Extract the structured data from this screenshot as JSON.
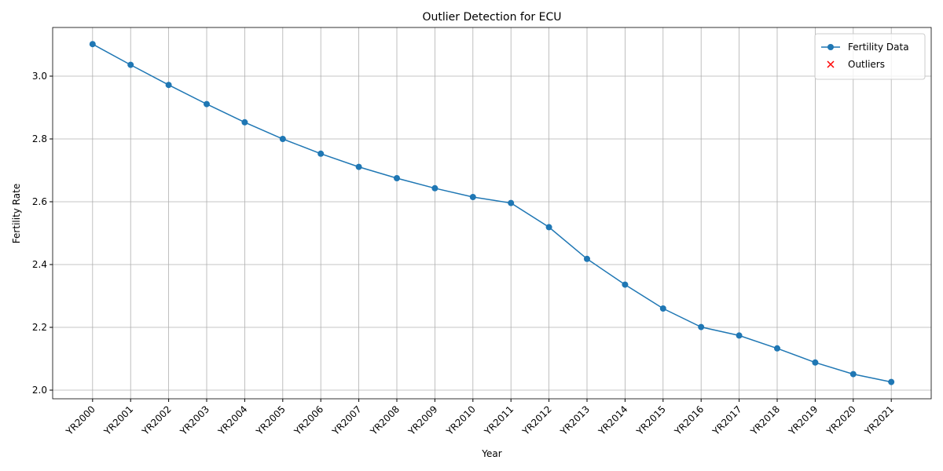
{
  "chart_data": {
    "type": "line",
    "title": "Outlier Detection for ECU",
    "xlabel": "Year",
    "ylabel": "Fertility Rate",
    "categories": [
      "YR2000",
      "YR2001",
      "YR2002",
      "YR2003",
      "YR2004",
      "YR2005",
      "YR2006",
      "YR2007",
      "YR2008",
      "YR2009",
      "YR2010",
      "YR2011",
      "YR2012",
      "YR2013",
      "YR2014",
      "YR2015",
      "YR2016",
      "YR2017",
      "YR2018",
      "YR2019",
      "YR2020",
      "YR2021"
    ],
    "series": [
      {
        "name": "Fertility Data",
        "color": "#1f77b4",
        "marker": "o",
        "values": [
          3.102,
          3.036,
          2.972,
          2.911,
          2.853,
          2.8,
          2.753,
          2.711,
          2.675,
          2.643,
          2.615,
          2.596,
          2.519,
          2.418,
          2.336,
          2.26,
          2.201,
          2.174,
          2.133,
          2.088,
          2.051,
          2.026
        ]
      },
      {
        "name": "Outliers",
        "color": "#ff0000",
        "marker": "x",
        "values": [
          null,
          null,
          null,
          null,
          null,
          null,
          null,
          null,
          null,
          null,
          null,
          null,
          null,
          null,
          null,
          null,
          null,
          null,
          null,
          null,
          null,
          null
        ]
      }
    ],
    "ylim": [
      1.9725,
      3.155
    ],
    "yticks": [
      {
        "value": 2.0,
        "label": "2.0"
      },
      2.2,
      2.4,
      2.6,
      2.8,
      {
        "value": 3.0,
        "label": "3.0"
      }
    ],
    "grid": true,
    "legend": "upper right"
  }
}
